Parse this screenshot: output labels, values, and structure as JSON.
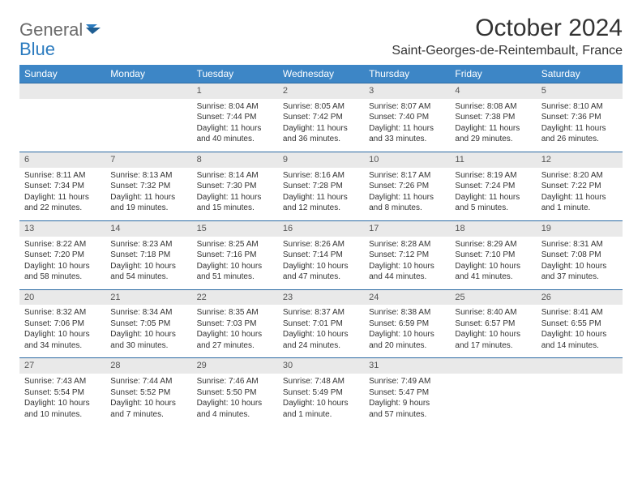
{
  "logo": {
    "part1": "General",
    "part2": "Blue"
  },
  "title": "October 2024",
  "location": "Saint-Georges-de-Reintembault, France",
  "colors": {
    "header_bg": "#3d86c6",
    "header_text": "#ffffff",
    "daynum_bg": "#e9e9e9",
    "divider": "#2b6aa3",
    "logo_gray": "#6b6b6b",
    "logo_blue": "#2b7bbf"
  },
  "weekdays": [
    "Sunday",
    "Monday",
    "Tuesday",
    "Wednesday",
    "Thursday",
    "Friday",
    "Saturday"
  ],
  "weeks": [
    {
      "nums": [
        "",
        "",
        "1",
        "2",
        "3",
        "4",
        "5"
      ],
      "cells": [
        null,
        null,
        {
          "sunrise": "Sunrise: 8:04 AM",
          "sunset": "Sunset: 7:44 PM",
          "day1": "Daylight: 11 hours",
          "day2": "and 40 minutes."
        },
        {
          "sunrise": "Sunrise: 8:05 AM",
          "sunset": "Sunset: 7:42 PM",
          "day1": "Daylight: 11 hours",
          "day2": "and 36 minutes."
        },
        {
          "sunrise": "Sunrise: 8:07 AM",
          "sunset": "Sunset: 7:40 PM",
          "day1": "Daylight: 11 hours",
          "day2": "and 33 minutes."
        },
        {
          "sunrise": "Sunrise: 8:08 AM",
          "sunset": "Sunset: 7:38 PM",
          "day1": "Daylight: 11 hours",
          "day2": "and 29 minutes."
        },
        {
          "sunrise": "Sunrise: 8:10 AM",
          "sunset": "Sunset: 7:36 PM",
          "day1": "Daylight: 11 hours",
          "day2": "and 26 minutes."
        }
      ]
    },
    {
      "nums": [
        "6",
        "7",
        "8",
        "9",
        "10",
        "11",
        "12"
      ],
      "cells": [
        {
          "sunrise": "Sunrise: 8:11 AM",
          "sunset": "Sunset: 7:34 PM",
          "day1": "Daylight: 11 hours",
          "day2": "and 22 minutes."
        },
        {
          "sunrise": "Sunrise: 8:13 AM",
          "sunset": "Sunset: 7:32 PM",
          "day1": "Daylight: 11 hours",
          "day2": "and 19 minutes."
        },
        {
          "sunrise": "Sunrise: 8:14 AM",
          "sunset": "Sunset: 7:30 PM",
          "day1": "Daylight: 11 hours",
          "day2": "and 15 minutes."
        },
        {
          "sunrise": "Sunrise: 8:16 AM",
          "sunset": "Sunset: 7:28 PM",
          "day1": "Daylight: 11 hours",
          "day2": "and 12 minutes."
        },
        {
          "sunrise": "Sunrise: 8:17 AM",
          "sunset": "Sunset: 7:26 PM",
          "day1": "Daylight: 11 hours",
          "day2": "and 8 minutes."
        },
        {
          "sunrise": "Sunrise: 8:19 AM",
          "sunset": "Sunset: 7:24 PM",
          "day1": "Daylight: 11 hours",
          "day2": "and 5 minutes."
        },
        {
          "sunrise": "Sunrise: 8:20 AM",
          "sunset": "Sunset: 7:22 PM",
          "day1": "Daylight: 11 hours",
          "day2": "and 1 minute."
        }
      ]
    },
    {
      "nums": [
        "13",
        "14",
        "15",
        "16",
        "17",
        "18",
        "19"
      ],
      "cells": [
        {
          "sunrise": "Sunrise: 8:22 AM",
          "sunset": "Sunset: 7:20 PM",
          "day1": "Daylight: 10 hours",
          "day2": "and 58 minutes."
        },
        {
          "sunrise": "Sunrise: 8:23 AM",
          "sunset": "Sunset: 7:18 PM",
          "day1": "Daylight: 10 hours",
          "day2": "and 54 minutes."
        },
        {
          "sunrise": "Sunrise: 8:25 AM",
          "sunset": "Sunset: 7:16 PM",
          "day1": "Daylight: 10 hours",
          "day2": "and 51 minutes."
        },
        {
          "sunrise": "Sunrise: 8:26 AM",
          "sunset": "Sunset: 7:14 PM",
          "day1": "Daylight: 10 hours",
          "day2": "and 47 minutes."
        },
        {
          "sunrise": "Sunrise: 8:28 AM",
          "sunset": "Sunset: 7:12 PM",
          "day1": "Daylight: 10 hours",
          "day2": "and 44 minutes."
        },
        {
          "sunrise": "Sunrise: 8:29 AM",
          "sunset": "Sunset: 7:10 PM",
          "day1": "Daylight: 10 hours",
          "day2": "and 41 minutes."
        },
        {
          "sunrise": "Sunrise: 8:31 AM",
          "sunset": "Sunset: 7:08 PM",
          "day1": "Daylight: 10 hours",
          "day2": "and 37 minutes."
        }
      ]
    },
    {
      "nums": [
        "20",
        "21",
        "22",
        "23",
        "24",
        "25",
        "26"
      ],
      "cells": [
        {
          "sunrise": "Sunrise: 8:32 AM",
          "sunset": "Sunset: 7:06 PM",
          "day1": "Daylight: 10 hours",
          "day2": "and 34 minutes."
        },
        {
          "sunrise": "Sunrise: 8:34 AM",
          "sunset": "Sunset: 7:05 PM",
          "day1": "Daylight: 10 hours",
          "day2": "and 30 minutes."
        },
        {
          "sunrise": "Sunrise: 8:35 AM",
          "sunset": "Sunset: 7:03 PM",
          "day1": "Daylight: 10 hours",
          "day2": "and 27 minutes."
        },
        {
          "sunrise": "Sunrise: 8:37 AM",
          "sunset": "Sunset: 7:01 PM",
          "day1": "Daylight: 10 hours",
          "day2": "and 24 minutes."
        },
        {
          "sunrise": "Sunrise: 8:38 AM",
          "sunset": "Sunset: 6:59 PM",
          "day1": "Daylight: 10 hours",
          "day2": "and 20 minutes."
        },
        {
          "sunrise": "Sunrise: 8:40 AM",
          "sunset": "Sunset: 6:57 PM",
          "day1": "Daylight: 10 hours",
          "day2": "and 17 minutes."
        },
        {
          "sunrise": "Sunrise: 8:41 AM",
          "sunset": "Sunset: 6:55 PM",
          "day1": "Daylight: 10 hours",
          "day2": "and 14 minutes."
        }
      ]
    },
    {
      "nums": [
        "27",
        "28",
        "29",
        "30",
        "31",
        "",
        ""
      ],
      "cells": [
        {
          "sunrise": "Sunrise: 7:43 AM",
          "sunset": "Sunset: 5:54 PM",
          "day1": "Daylight: 10 hours",
          "day2": "and 10 minutes."
        },
        {
          "sunrise": "Sunrise: 7:44 AM",
          "sunset": "Sunset: 5:52 PM",
          "day1": "Daylight: 10 hours",
          "day2": "and 7 minutes."
        },
        {
          "sunrise": "Sunrise: 7:46 AM",
          "sunset": "Sunset: 5:50 PM",
          "day1": "Daylight: 10 hours",
          "day2": "and 4 minutes."
        },
        {
          "sunrise": "Sunrise: 7:48 AM",
          "sunset": "Sunset: 5:49 PM",
          "day1": "Daylight: 10 hours",
          "day2": "and 1 minute."
        },
        {
          "sunrise": "Sunrise: 7:49 AM",
          "sunset": "Sunset: 5:47 PM",
          "day1": "Daylight: 9 hours",
          "day2": "and 57 minutes."
        },
        null,
        null
      ]
    }
  ]
}
